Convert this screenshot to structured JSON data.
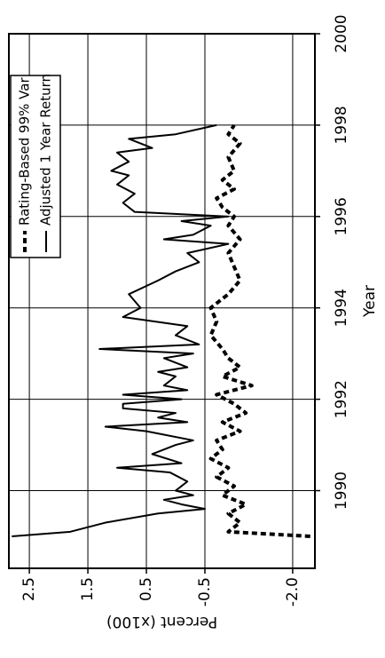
{
  "chart_data": {
    "type": "line",
    "x_label": "Year",
    "y_label": "Percent (x100)",
    "xlim": [
      1988.3,
      2000
    ],
    "xticks": [
      1990,
      1992,
      1994,
      1996,
      1998,
      2000
    ],
    "ylim": [
      -2.38,
      2.85
    ],
    "yticks": [
      2.5,
      1.5,
      0.5,
      -0.5,
      {
        "value": -2.0,
        "label": "-2.0"
      }
    ],
    "grid": true,
    "legend": "upper right",
    "series": [
      {
        "name": "Rating-Based 99% Var",
        "color": "#000000",
        "line_style": "dotted",
        "x": [
          1989.0,
          1989.1,
          1989.3,
          1989.5,
          1989.7,
          1989.9,
          1990.1,
          1990.3,
          1990.5,
          1990.7,
          1990.9,
          1991.1,
          1991.3,
          1991.5,
          1991.7,
          1991.9,
          1992.1,
          1992.3,
          1992.5,
          1992.7,
          1992.9,
          1993.1,
          1993.4,
          1993.7,
          1994.0,
          1994.3,
          1994.6,
          1994.9,
          1995.2,
          1995.5,
          1995.8,
          1996.0,
          1996.2,
          1996.4,
          1996.6,
          1996.8,
          1997.0,
          1997.3,
          1997.6,
          1997.8,
          1998.0
        ],
        "values": [
          -2.3,
          -0.9,
          -1.1,
          -0.9,
          -1.2,
          -0.8,
          -1.0,
          -0.7,
          -0.9,
          -0.6,
          -0.8,
          -0.7,
          -1.1,
          -0.8,
          -1.2,
          -1.0,
          -0.7,
          -1.3,
          -0.8,
          -1.1,
          -0.9,
          -0.8,
          -0.6,
          -0.7,
          -0.6,
          -0.9,
          -1.1,
          -1.0,
          -0.9,
          -1.1,
          -0.9,
          -1.0,
          -0.8,
          -0.7,
          -1.0,
          -0.8,
          -1.0,
          -0.9,
          -1.1,
          -0.9,
          -1.0
        ]
      },
      {
        "name": "Adjusted 1 Year Return",
        "color": "#000000",
        "line_style": "solid",
        "x": [
          1989.0,
          1989.1,
          1989.3,
          1989.5,
          1989.6,
          1989.7,
          1989.8,
          1989.9,
          1990.0,
          1990.2,
          1990.4,
          1990.5,
          1990.6,
          1990.8,
          1991.0,
          1991.1,
          1991.3,
          1991.4,
          1991.5,
          1991.6,
          1991.7,
          1991.8,
          1991.9,
          1992.0,
          1992.1,
          1992.2,
          1992.3,
          1992.5,
          1992.6,
          1992.7,
          1992.9,
          1993.0,
          1993.1,
          1993.2,
          1993.4,
          1993.6,
          1993.8,
          1994.0,
          1994.3,
          1994.6,
          1994.8,
          1995.0,
          1995.2,
          1995.4,
          1995.5,
          1995.6,
          1995.8,
          1995.9,
          1996.0,
          1996.1,
          1996.3,
          1996.5,
          1996.7,
          1996.9,
          1997.0,
          1997.2,
          1997.4,
          1997.5,
          1997.7,
          1997.8,
          1998.0
        ],
        "values": [
          2.8,
          1.8,
          1.2,
          0.3,
          -0.5,
          -0.1,
          0.2,
          -0.3,
          0.0,
          -0.2,
          0.1,
          1.0,
          -0.1,
          0.4,
          0.0,
          -0.3,
          0.5,
          1.2,
          -0.2,
          0.3,
          0.0,
          0.9,
          0.9,
          -0.1,
          0.9,
          -0.2,
          0.2,
          0.0,
          0.3,
          -0.2,
          0.2,
          -0.3,
          1.3,
          -0.4,
          0.0,
          -0.2,
          0.9,
          0.6,
          0.8,
          0.3,
          0.0,
          -0.4,
          -0.2,
          -0.9,
          0.2,
          -0.3,
          -0.6,
          -0.1,
          -0.9,
          0.7,
          0.9,
          0.7,
          1.0,
          0.8,
          1.1,
          0.8,
          1.0,
          0.4,
          0.8,
          0.0,
          -0.7
        ]
      }
    ]
  }
}
